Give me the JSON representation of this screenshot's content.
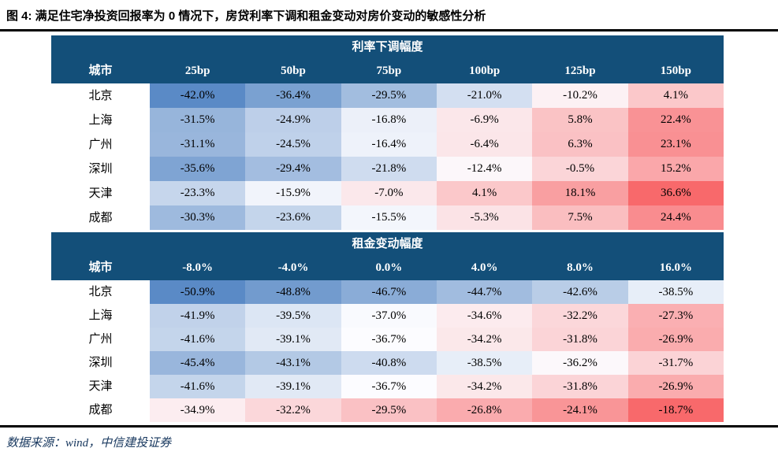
{
  "title": "图 4: 满足住宅净投资回报率为 0 情况下，房贷利率下调和租金变动对房价变动的敏感性分析",
  "source": "数据来源：wind，中信建投证券",
  "colors": {
    "header_bg": "#134F79",
    "header_text": "#FFFFFF",
    "scale_low": "#5A8AC6",
    "scale_mid": "#FCFCFF",
    "scale_high": "#F8696B",
    "rule": "#000000",
    "source_text": "#17375E"
  },
  "chart_data": [
    {
      "type": "heatmap",
      "title": "利率下调幅度",
      "city_header": "城市",
      "columns": [
        "25bp",
        "50bp",
        "75bp",
        "100bp",
        "125bp",
        "150bp"
      ],
      "value_format": "percent_1dp",
      "rows": [
        {
          "city": "北京",
          "values": [
            -42.0,
            -36.4,
            -29.5,
            -21.0,
            -10.2,
            4.1
          ]
        },
        {
          "city": "上海",
          "values": [
            -31.5,
            -24.9,
            -16.8,
            -6.9,
            5.8,
            22.4
          ]
        },
        {
          "city": "广州",
          "values": [
            -31.1,
            -24.5,
            -16.4,
            -6.4,
            6.3,
            23.1
          ]
        },
        {
          "city": "深圳",
          "values": [
            -35.6,
            -29.4,
            -21.8,
            -12.4,
            -0.5,
            15.2
          ]
        },
        {
          "city": "天津",
          "values": [
            -23.3,
            -15.9,
            -7.0,
            4.1,
            18.1,
            36.6
          ]
        },
        {
          "city": "成都",
          "values": [
            -30.3,
            -23.6,
            -15.5,
            -5.3,
            7.5,
            24.4
          ]
        }
      ]
    },
    {
      "type": "heatmap",
      "title": "租金变动幅度",
      "city_header": "城市",
      "columns": [
        "-8.0%",
        "-4.0%",
        "0.0%",
        "4.0%",
        "8.0%",
        "16.0%"
      ],
      "value_format": "percent_1dp",
      "rows": [
        {
          "city": "北京",
          "values": [
            -50.9,
            -48.8,
            -46.7,
            -44.7,
            -42.6,
            -38.5
          ]
        },
        {
          "city": "上海",
          "values": [
            -41.9,
            -39.5,
            -37.0,
            -34.6,
            -32.2,
            -27.3
          ]
        },
        {
          "city": "广州",
          "values": [
            -41.6,
            -39.1,
            -36.7,
            -34.2,
            -31.8,
            -26.9
          ]
        },
        {
          "city": "深圳",
          "values": [
            -45.4,
            -43.1,
            -40.8,
            -38.5,
            -36.2,
            -31.7
          ]
        },
        {
          "city": "天津",
          "values": [
            -41.6,
            -39.1,
            -36.7,
            -34.2,
            -31.8,
            -26.9
          ]
        },
        {
          "city": "成都",
          "values": [
            -34.9,
            -32.2,
            -29.5,
            -26.8,
            -24.1,
            -18.7
          ]
        }
      ]
    }
  ]
}
